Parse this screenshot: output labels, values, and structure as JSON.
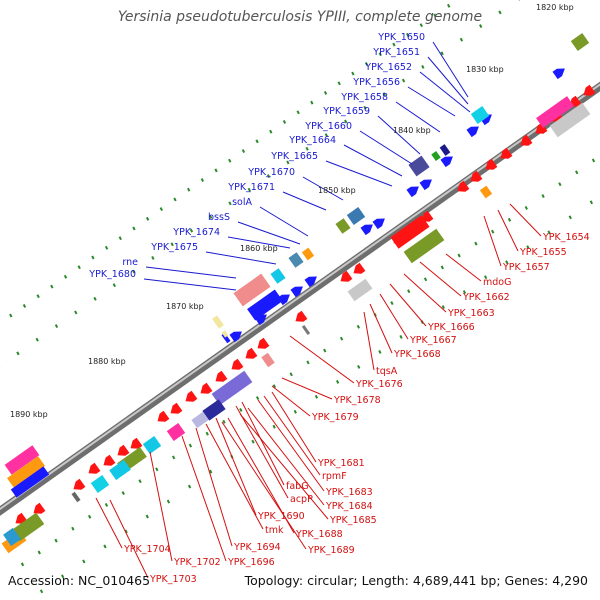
{
  "title": "Yersinia pseudotuberculosis YPIII, complete genome",
  "footer": {
    "accession": "Accession: NC_010465",
    "summary": "Topology: circular; Length: 4,689,441 bp; Genes: 4,290"
  },
  "ticks": [
    "1820 kbp",
    "1830 kbp",
    "1840 kbp",
    "1850 kbp",
    "1860 kbp",
    "1870 kbp",
    "1880 kbp",
    "1890 kbp"
  ],
  "forward_labels": [
    "YPK_1650",
    "YPK_1651",
    "YPK_1652",
    "YPK_1656",
    "YPK_1658",
    "YPK_1659",
    "YPK_1660",
    "YPK_1664",
    "YPK_1665",
    "YPK_1670",
    "YPK_1671",
    "solA",
    "bssS",
    "YPK_1674",
    "YPK_1675",
    "rne",
    "YPK_1680"
  ],
  "reverse_labels": [
    "YPK_1654",
    "YPK_1655",
    "YPK_1657",
    "mdoG",
    "YPK_1662",
    "YPK_1663",
    "YPK_1666",
    "YPK_1667",
    "YPK_1668",
    "tqsA",
    "YPK_1676",
    "YPK_1678",
    "YPK_1679",
    "YPK_1681",
    "rpmF",
    "fabG",
    "YPK_1683",
    "acpP",
    "YPK_1684",
    "YPK_1685",
    "YPK_1690",
    "tmk",
    "YPK_1688",
    "YPK_1689",
    "YPK_1694",
    "YPK_1696",
    "YPK_1702",
    "YPK_1704",
    "YPK_1703"
  ],
  "colors": {
    "backbone": "#8c8c8c",
    "forward_cds": "#1a1aff",
    "reverse_cds": "#ff1414",
    "gc_marks": "#2a8a2a",
    "forward_label": "#1a1ad0",
    "reverse_label": "#d41010"
  }
}
